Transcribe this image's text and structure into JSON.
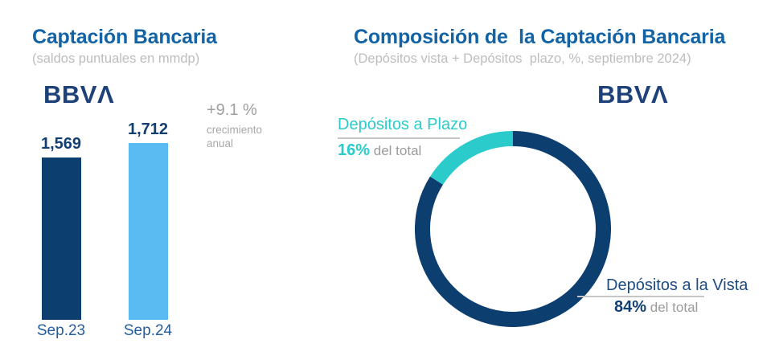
{
  "colors": {
    "navy": "#0D3E70",
    "light_blue": "#59BBF2",
    "aqua": "#2BCBCB",
    "title_blue": "#1464A5",
    "logo_navy": "#1D4178",
    "gray_text": "#9F9F9F"
  },
  "left_panel": {
    "title": "Captación Bancaria",
    "subtitle": "(saldos puntuales en mmdp)",
    "logo": "BBVΛ",
    "growth": {
      "pct": "+9.1 %",
      "line1": "crecimiento",
      "line2": "anual"
    }
  },
  "right_panel": {
    "title": "Composición de  la Captación Bancaria",
    "subtitle": "(Depósitos vista + Depósitos  plazo, %, septiembre 2024)",
    "logo": "BBVΛ",
    "plazo": {
      "label": "Depósitos a Plazo",
      "pct": "16%",
      "suffix": "del total"
    },
    "vista": {
      "label": "Depósitos a la Vista",
      "pct": "84%",
      "suffix": "del total"
    }
  },
  "chart_data": [
    {
      "type": "bar",
      "title": "Captación Bancaria",
      "subtitle": "(saldos puntuales en mmdp)",
      "unit": "mmdp",
      "categories": [
        "Sep.23",
        "Sep.24"
      ],
      "values": [
        1569,
        1712
      ],
      "value_labels": [
        "1,569",
        "1,712"
      ],
      "bar_colors": [
        "#0D3E70",
        "#59BBF2"
      ],
      "annotation": "+9.1 % crecimiento anual",
      "ylim": [
        0,
        1750
      ],
      "grid": false,
      "axis_lines": false
    },
    {
      "type": "pie",
      "subtype": "donut",
      "title": "Composición de la Captación Bancaria",
      "subtitle": "(Depósitos vista + Depósitos plazo, %, septiembre 2024)",
      "start_angle_deg": 90,
      "first_slice_direction": "counterclockwise",
      "slices": [
        {
          "label": "Depósitos a Plazo",
          "value": 16,
          "color": "#2BCBCB"
        },
        {
          "label": "Depósitos a la Vista",
          "value": 84,
          "color": "#0D3E70"
        }
      ]
    }
  ]
}
